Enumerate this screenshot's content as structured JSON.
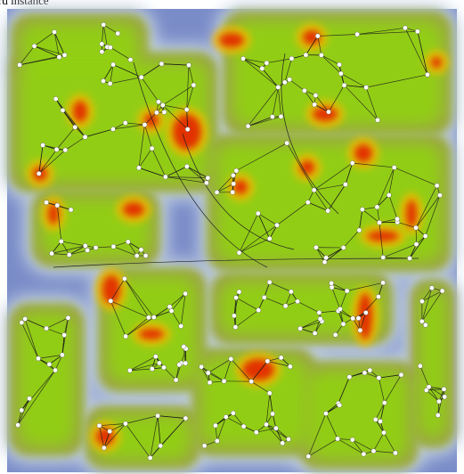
{
  "title": "rd instance"
}
